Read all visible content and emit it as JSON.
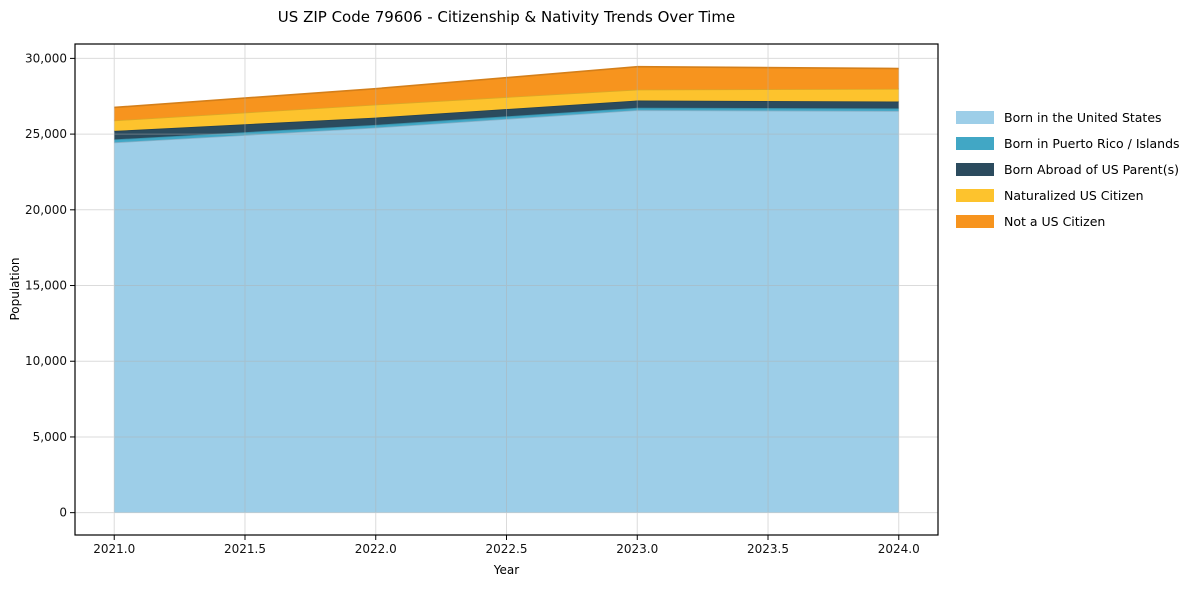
{
  "chart_data": {
    "type": "area",
    "stacked": true,
    "title": "US ZIP Code 79606 - Citizenship & Nativity Trends Over Time",
    "xlabel": "Year",
    "ylabel": "Population",
    "x": [
      2021,
      2022,
      2023,
      2024
    ],
    "series": [
      {
        "name": "Born in the United States",
        "color": "#9dcee8",
        "values": [
          24450,
          25430,
          26580,
          26530
        ]
      },
      {
        "name": "Born in Puerto Rico / Islands",
        "color": "#41a7c5",
        "values": [
          200,
          180,
          160,
          170
        ]
      },
      {
        "name": "Born Abroad of US Parent(s)",
        "color": "#2b4b5e",
        "values": [
          560,
          480,
          480,
          450
        ]
      },
      {
        "name": "Naturalized US Citizen",
        "color": "#fdc32d",
        "values": [
          690,
          860,
          720,
          840
        ]
      },
      {
        "name": "Not a US Citizen",
        "color": "#f7941e",
        "values": [
          860,
          1050,
          1510,
          1340
        ]
      }
    ],
    "totals": [
      26760,
      28000,
      29450,
      29330
    ],
    "x_ticks": [
      2021.0,
      2021.5,
      2022.0,
      2022.5,
      2023.0,
      2023.5,
      2024.0
    ],
    "x_tick_labels": [
      "2021.0",
      "2021.5",
      "2022.0",
      "2022.5",
      "2023.0",
      "2023.5",
      "2024.0"
    ],
    "y_ticks": [
      0,
      5000,
      10000,
      15000,
      20000,
      25000,
      30000
    ],
    "y_tick_labels": [
      "0",
      "5,000",
      "10,000",
      "15,000",
      "20,000",
      "25,000",
      "30,000"
    ],
    "xlim": [
      2020.85,
      2024.15
    ],
    "ylim": [
      -1475,
      30950
    ],
    "grid": true,
    "grid_color": "#b0b0b0",
    "background": "#ffffff",
    "legend_position": "right-outside"
  }
}
